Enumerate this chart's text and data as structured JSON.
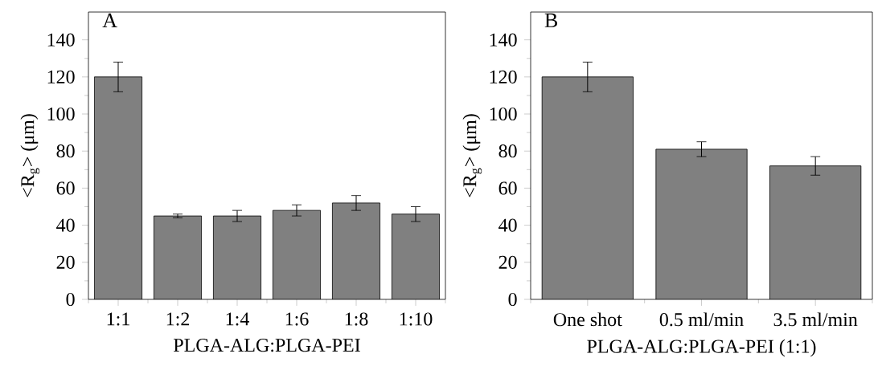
{
  "chart_data": [
    {
      "type": "bar",
      "title": "A",
      "xlabel": "PLGA-ALG:PLGA-PEI",
      "ylabel": "<R$_{g}$> (μm)",
      "categories": [
        "1:1",
        "1:2",
        "1:4",
        "1:6",
        "1:8",
        "1:10"
      ],
      "values": [
        120,
        45,
        45,
        48,
        52,
        46
      ],
      "errors": [
        8,
        1,
        3,
        3,
        4,
        4
      ],
      "color": "#808080",
      "ylim": [
        0,
        155
      ],
      "yticks": [
        0,
        20,
        40,
        60,
        80,
        100,
        120,
        140
      ]
    },
    {
      "type": "bar",
      "title": "B",
      "xlabel": "PLGA-ALG:PLGA-PEI (1:1)",
      "ylabel": "<R$_{g}$> (μm)",
      "categories": [
        "One shot",
        "0.5 ml/min",
        "3.5 ml/min"
      ],
      "values": [
        120,
        81,
        72
      ],
      "errors": [
        8,
        4,
        5
      ],
      "color": "#808080",
      "ylim": [
        0,
        155
      ],
      "yticks": [
        0,
        20,
        40,
        60,
        80,
        100,
        120,
        140
      ]
    }
  ]
}
